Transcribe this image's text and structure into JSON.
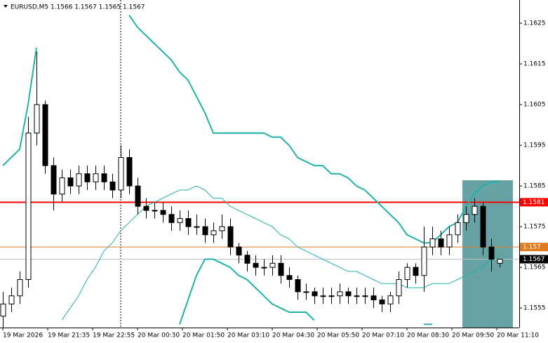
{
  "chart_data": {
    "type": "candlestick",
    "title": "EURUSD,M5  1.1566 1.1567 1.1565 1.1567",
    "ylim": [
      1.15502,
      1.16307
    ],
    "yticks": [
      1.1625,
      1.1615,
      1.1605,
      1.1595,
      1.1585,
      1.1575,
      1.1565,
      1.1555
    ],
    "categories": [
      "19 Mar 2026",
      "19 Mar 21:35",
      "19 Mar 22:55",
      "20 Mar 00:30",
      "20 Mar 01:50",
      "20 Mar 03:10",
      "20 Mar 04:30",
      "20 Mar 05:50",
      "20 Mar 07:10",
      "20 Mar 08:30",
      "20 Mar 09:50",
      "20 Mar 11:10"
    ],
    "candles": {
      "open": [
        1.1553,
        1.1556,
        1.1558,
        1.1562,
        1.1598,
        1.1605,
        1.159,
        1.1583,
        1.1587,
        1.1585,
        1.1588,
        1.1586,
        1.1588,
        1.1586,
        1.1584,
        1.1592,
        1.1585,
        1.158,
        1.1579,
        1.1579,
        1.1578,
        1.1576,
        1.1577,
        1.1575,
        1.1575,
        1.1573,
        1.1574,
        1.1575,
        1.157,
        1.1568,
        1.1566,
        1.1565,
        1.1565,
        1.1566,
        1.1563,
        1.1562,
        1.1559,
        1.1559,
        1.1558,
        1.1558,
        1.1558,
        1.1559,
        1.1558,
        1.1558,
        1.1558,
        1.1557,
        1.1556,
        1.1558,
        1.1562,
        1.1565,
        1.1563,
        1.157,
        1.1572,
        1.157,
        1.1573,
        1.1576,
        1.1578,
        1.158,
        1.157,
        1.1566
      ],
      "high": [
        1.1559,
        1.156,
        1.1564,
        1.1602,
        1.1618,
        1.1606,
        1.1592,
        1.1589,
        1.1589,
        1.159,
        1.159,
        1.159,
        1.159,
        1.1588,
        1.1595,
        1.1594,
        1.1587,
        1.1582,
        1.1581,
        1.1581,
        1.158,
        1.1579,
        1.1579,
        1.1578,
        1.1577,
        1.1576,
        1.1578,
        1.1577,
        1.1571,
        1.1569,
        1.1568,
        1.1567,
        1.1568,
        1.1568,
        1.1565,
        1.1563,
        1.1561,
        1.156,
        1.156,
        1.156,
        1.1561,
        1.156,
        1.156,
        1.156,
        1.156,
        1.1558,
        1.1559,
        1.1564,
        1.1566,
        1.1566,
        1.1575,
        1.1575,
        1.1574,
        1.1575,
        1.1578,
        1.158,
        1.1582,
        1.1581,
        1.1572,
        1.1567
      ],
      "low": [
        1.155,
        1.1554,
        1.1556,
        1.156,
        1.1595,
        1.1588,
        1.1579,
        1.1581,
        1.1583,
        1.1583,
        1.1584,
        1.1584,
        1.1584,
        1.1582,
        1.1582,
        1.1583,
        1.1578,
        1.1577,
        1.1577,
        1.1576,
        1.1574,
        1.1574,
        1.1573,
        1.1573,
        1.1571,
        1.1571,
        1.1572,
        1.1568,
        1.1566,
        1.1564,
        1.1563,
        1.1563,
        1.1563,
        1.1561,
        1.156,
        1.1557,
        1.1557,
        1.1556,
        1.1556,
        1.1556,
        1.1556,
        1.1556,
        1.1556,
        1.1556,
        1.1555,
        1.1554,
        1.1554,
        1.1556,
        1.156,
        1.1561,
        1.1559,
        1.1568,
        1.1568,
        1.1568,
        1.1571,
        1.1574,
        1.1576,
        1.1568,
        1.1564,
        1.1565
      ],
      "close": [
        1.1556,
        1.1558,
        1.1562,
        1.1598,
        1.1605,
        1.159,
        1.1583,
        1.1587,
        1.1585,
        1.1588,
        1.1586,
        1.1588,
        1.1586,
        1.1584,
        1.1592,
        1.1585,
        1.158,
        1.1579,
        1.1579,
        1.1578,
        1.1576,
        1.1577,
        1.1575,
        1.1575,
        1.1573,
        1.1574,
        1.1575,
        1.157,
        1.1568,
        1.1566,
        1.1565,
        1.1565,
        1.1566,
        1.1563,
        1.1562,
        1.1559,
        1.1559,
        1.1558,
        1.1558,
        1.1558,
        1.1559,
        1.1558,
        1.1558,
        1.1558,
        1.1557,
        1.1556,
        1.1558,
        1.1562,
        1.1565,
        1.1563,
        1.157,
        1.1572,
        1.157,
        1.1573,
        1.1576,
        1.1578,
        1.158,
        1.157,
        1.1567,
        1.1567
      ]
    },
    "bands": [
      {
        "color": "#20b2aa",
        "width": 2,
        "values": [
          1.159,
          1.1592,
          1.1594,
          1.1605,
          1.1619,
          null,
          null,
          null,
          null,
          null,
          null,
          null,
          null,
          null,
          null,
          1.1627,
          1.1624,
          1.1622,
          1.162,
          1.1618,
          1.1616,
          1.1613,
          1.1611,
          1.1607,
          1.1603,
          1.1598,
          1.1598,
          1.1598,
          1.1598,
          1.1598,
          1.1598,
          1.1598,
          1.1597,
          1.1597,
          1.1595,
          1.1592,
          1.1591,
          1.159,
          1.159,
          1.1588,
          1.1588,
          1.1587,
          1.1585,
          1.1584,
          1.1582,
          1.158,
          1.1578,
          1.1576,
          1.1573,
          1.1572,
          1.1571,
          1.1571,
          1.1573,
          1.1575,
          1.1576,
          1.158,
          1.1583,
          1.1585,
          1.1586,
          1.1586
        ]
      },
      {
        "color": "#20b2aa",
        "width": 1,
        "values": [
          null,
          null,
          null,
          null,
          null,
          null,
          null,
          1.1552,
          1.1555,
          1.1558,
          1.1562,
          1.1565,
          1.1569,
          1.1571,
          1.1574,
          1.1576,
          1.1578,
          1.158,
          1.1581,
          1.1582,
          1.1583,
          1.1584,
          1.1584,
          1.1585,
          1.1584,
          1.1582,
          1.1582,
          1.158,
          1.1579,
          1.1578,
          1.1577,
          1.1576,
          1.1575,
          1.1573,
          1.1572,
          1.157,
          1.1569,
          1.1568,
          1.1567,
          1.1566,
          1.1565,
          1.1564,
          1.1564,
          1.1563,
          1.1562,
          1.1561,
          1.1561,
          1.1561,
          1.156,
          1.156,
          1.156,
          1.1561,
          1.1561,
          1.1561,
          1.1562,
          1.1563,
          1.1564,
          1.1565,
          1.1567,
          1.1568
        ]
      },
      {
        "color": "#20b2aa",
        "width": 2,
        "values": [
          null,
          null,
          null,
          null,
          null,
          null,
          null,
          null,
          null,
          null,
          null,
          null,
          null,
          null,
          null,
          null,
          null,
          null,
          null,
          null,
          null,
          1.1551,
          1.1557,
          1.1563,
          1.1567,
          1.1567,
          1.1566,
          1.1565,
          1.1563,
          1.1562,
          1.156,
          1.1558,
          1.1556,
          1.1555,
          1.1554,
          1.1554,
          1.1554,
          1.1552,
          null,
          null,
          null,
          null,
          null,
          null,
          null,
          null,
          null,
          null,
          null,
          null,
          1.1551,
          1.1551,
          null,
          null,
          null,
          null,
          null,
          null,
          null,
          null
        ]
      }
    ],
    "levels": [
      {
        "value": 1.1581,
        "color": "#ff0000",
        "width": 2
      },
      {
        "value": 1.157,
        "color": "#e07b20",
        "width": 1
      },
      {
        "value": 1.1567,
        "color": "#c0c0c0",
        "width": 1
      }
    ],
    "level_label_colors": [
      "#ff0000",
      "#e07b20",
      "#000000"
    ]
  }
}
